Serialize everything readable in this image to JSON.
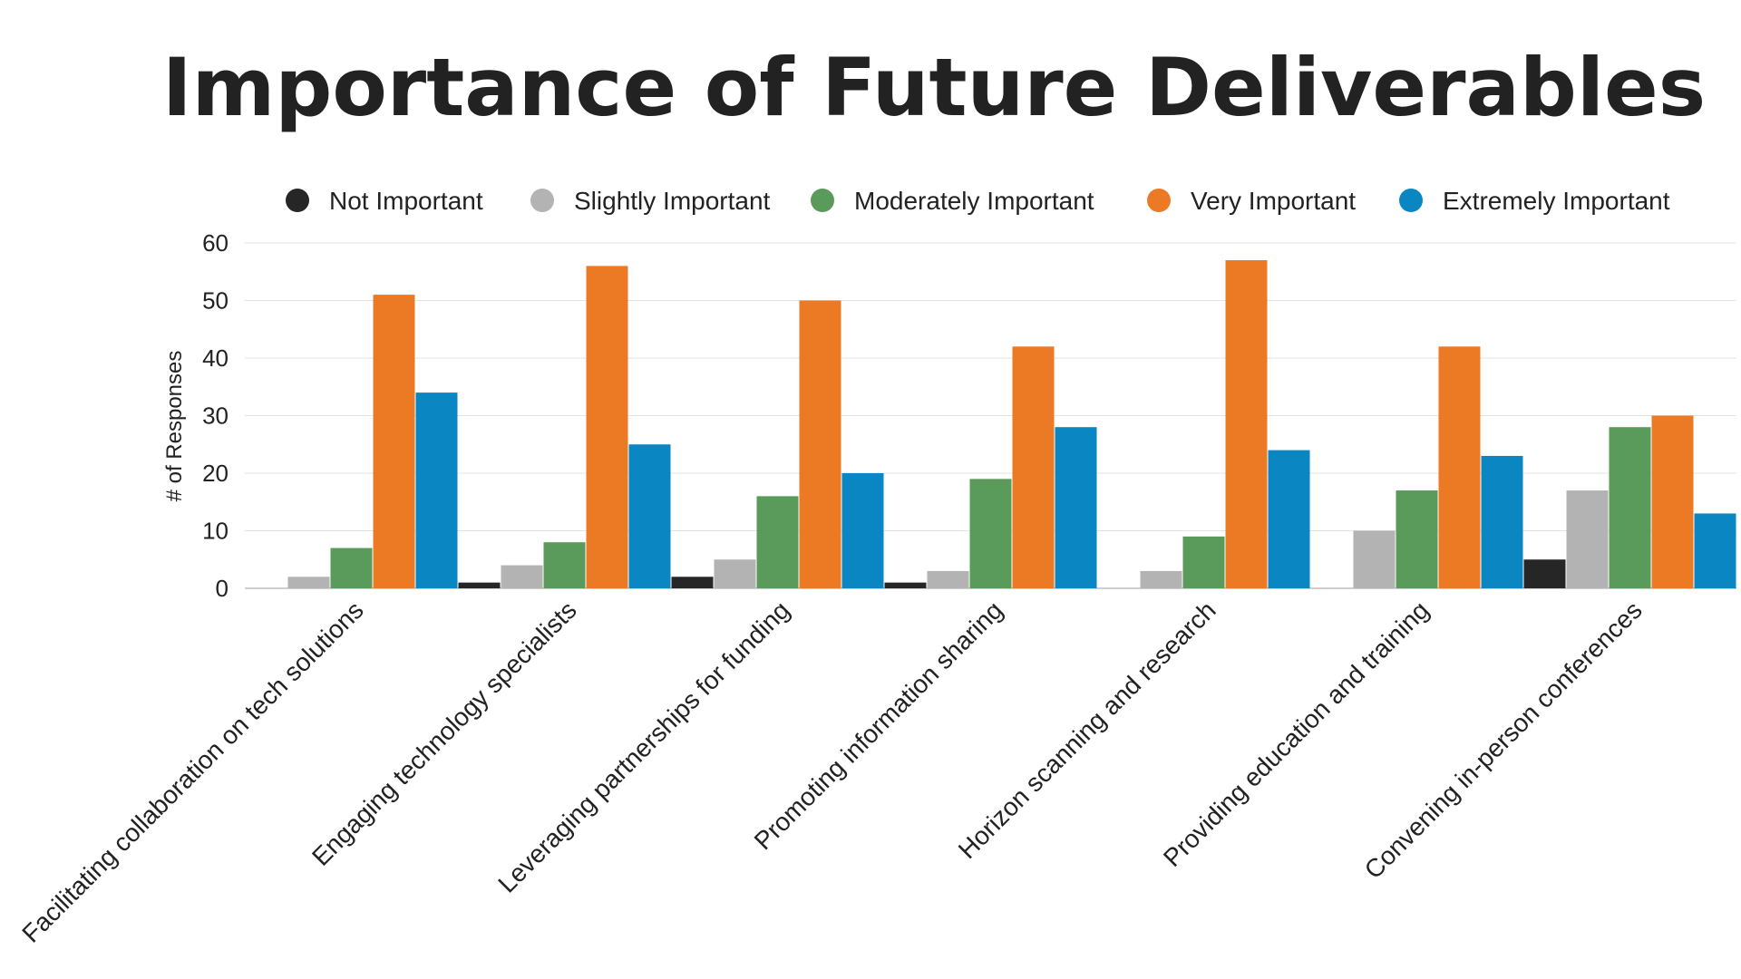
{
  "chart_data": {
    "type": "bar",
    "title": "Importance of Future Deliverables",
    "xlabel": "",
    "ylabel": "# of Responses",
    "ylim": [
      0,
      60
    ],
    "yticks": [
      0,
      10,
      20,
      30,
      40,
      50,
      60
    ],
    "grid": true,
    "legend_position": "top",
    "categories": [
      "Facilitating collaboration on tech solutions",
      "Engaging technology specialists",
      "Leveraging partnerships for funding",
      "Promoting information sharing",
      "Horizon scanning and research",
      "Providing education and training",
      "Convening in-person conferences"
    ],
    "series": [
      {
        "name": "Not Important",
        "color": "#262626",
        "values": [
          0,
          1,
          2,
          1,
          0,
          0,
          5
        ]
      },
      {
        "name": "Slightly Important",
        "color": "#b3b3b3",
        "values": [
          2,
          4,
          5,
          3,
          3,
          10,
          17
        ]
      },
      {
        "name": "Moderately Important",
        "color": "#5a9a5a",
        "values": [
          7,
          8,
          16,
          19,
          9,
          17,
          28
        ]
      },
      {
        "name": "Very Important",
        "color": "#ec7a25",
        "values": [
          51,
          56,
          50,
          42,
          57,
          42,
          30
        ]
      },
      {
        "name": "Extremely Important",
        "color": "#0a87c2",
        "values": [
          34,
          25,
          20,
          28,
          24,
          23,
          13
        ]
      }
    ]
  }
}
